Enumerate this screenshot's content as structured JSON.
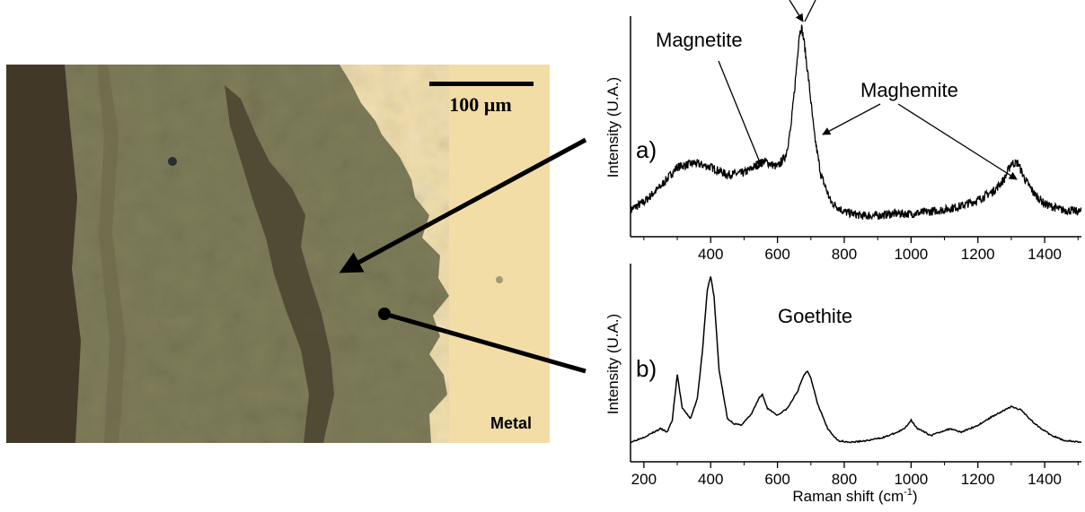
{
  "micrograph": {
    "scale_bar_label": "100 µm",
    "region_label": "Metal",
    "colors": {
      "metal": "#f2dda6",
      "corrosion_layer": "#7f7d5a",
      "dark_band": "#3e3526"
    }
  },
  "chart_data": [
    {
      "type": "line",
      "panel_label": "a)",
      "xlabel": "",
      "ylabel": "Intensity (U.A.)",
      "xlim": [
        160,
        1510
      ],
      "x_ticks": [
        400,
        600,
        800,
        1000,
        1200,
        1400
      ],
      "annotations": [
        "Magnetite",
        "Maghemite"
      ],
      "series": [
        {
          "x": [
            160,
            200,
            250,
            300,
            350,
            400,
            450,
            500,
            530,
            560,
            600,
            625,
            640,
            655,
            665,
            672,
            680,
            695,
            710,
            730,
            760,
            800,
            850,
            900,
            950,
            1000,
            1050,
            1100,
            1150,
            1200,
            1250,
            1280,
            1300,
            1320,
            1340,
            1370,
            1400,
            1450,
            1510
          ],
          "y": [
            0.06,
            0.1,
            0.18,
            0.28,
            0.3,
            0.28,
            0.24,
            0.25,
            0.28,
            0.31,
            0.28,
            0.34,
            0.48,
            0.75,
            0.96,
            1.0,
            0.92,
            0.7,
            0.45,
            0.24,
            0.1,
            0.05,
            0.03,
            0.03,
            0.04,
            0.04,
            0.05,
            0.06,
            0.08,
            0.11,
            0.16,
            0.22,
            0.3,
            0.3,
            0.22,
            0.14,
            0.09,
            0.06,
            0.05
          ]
        }
      ]
    },
    {
      "type": "line",
      "panel_label": "b)",
      "xlabel": "Raman shift (cm",
      "xlabel_sup": "-1",
      "xlabel_close": ")",
      "ylabel": "Intensity (U.A.)",
      "xlim": [
        160,
        1510
      ],
      "x_ticks": [
        200,
        400,
        600,
        800,
        1000,
        1200,
        1400
      ],
      "annotations": [
        "Goethite"
      ],
      "series": [
        {
          "x": [
            160,
            200,
            230,
            250,
            270,
            285,
            300,
            315,
            340,
            360,
            375,
            390,
            400,
            410,
            425,
            450,
            470,
            490,
            520,
            545,
            555,
            570,
            600,
            630,
            660,
            680,
            690,
            700,
            720,
            750,
            780,
            820,
            870,
            920,
            960,
            980,
            1000,
            1020,
            1060,
            1100,
            1120,
            1150,
            1200,
            1250,
            1300,
            1330,
            1370,
            1420,
            1460,
            1510
          ],
          "y": [
            0.02,
            0.05,
            0.08,
            0.1,
            0.08,
            0.15,
            0.42,
            0.22,
            0.16,
            0.28,
            0.55,
            0.92,
            1.0,
            0.88,
            0.45,
            0.16,
            0.13,
            0.12,
            0.18,
            0.28,
            0.3,
            0.22,
            0.18,
            0.22,
            0.32,
            0.42,
            0.44,
            0.4,
            0.25,
            0.1,
            0.03,
            0.02,
            0.03,
            0.05,
            0.08,
            0.1,
            0.15,
            0.1,
            0.06,
            0.09,
            0.1,
            0.08,
            0.12,
            0.18,
            0.23,
            0.21,
            0.13,
            0.06,
            0.03,
            0.02
          ]
        }
      ]
    }
  ]
}
